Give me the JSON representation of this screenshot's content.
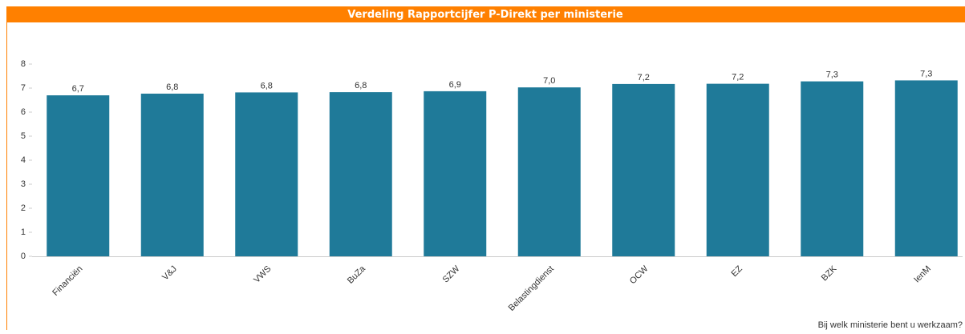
{
  "chart_data": {
    "type": "bar",
    "title": "Verdeling Rapportcijfer P-Direkt per ministerie",
    "x_label": "Bij welk ministerie bent u werkzaam?",
    "categories": [
      "Financiën",
      "V&J",
      "VWS",
      "BuZa",
      "SZW",
      "Belastingdienst",
      "OCW",
      "EZ",
      "BZK",
      "IenM"
    ],
    "values": [
      6.7,
      6.77,
      6.82,
      6.83,
      6.87,
      7.03,
      7.17,
      7.18,
      7.28,
      7.32
    ],
    "value_labels": [
      "6,7",
      "6,8",
      "6,8",
      "6,8",
      "6,9",
      "7,0",
      "7,2",
      "7,2",
      "7,3",
      "7,3"
    ],
    "color": "#1f7a99",
    "ylim": [
      0,
      8
    ],
    "yticks": [
      0,
      1,
      2,
      3,
      4,
      5,
      6,
      7,
      8
    ],
    "grid": false
  }
}
